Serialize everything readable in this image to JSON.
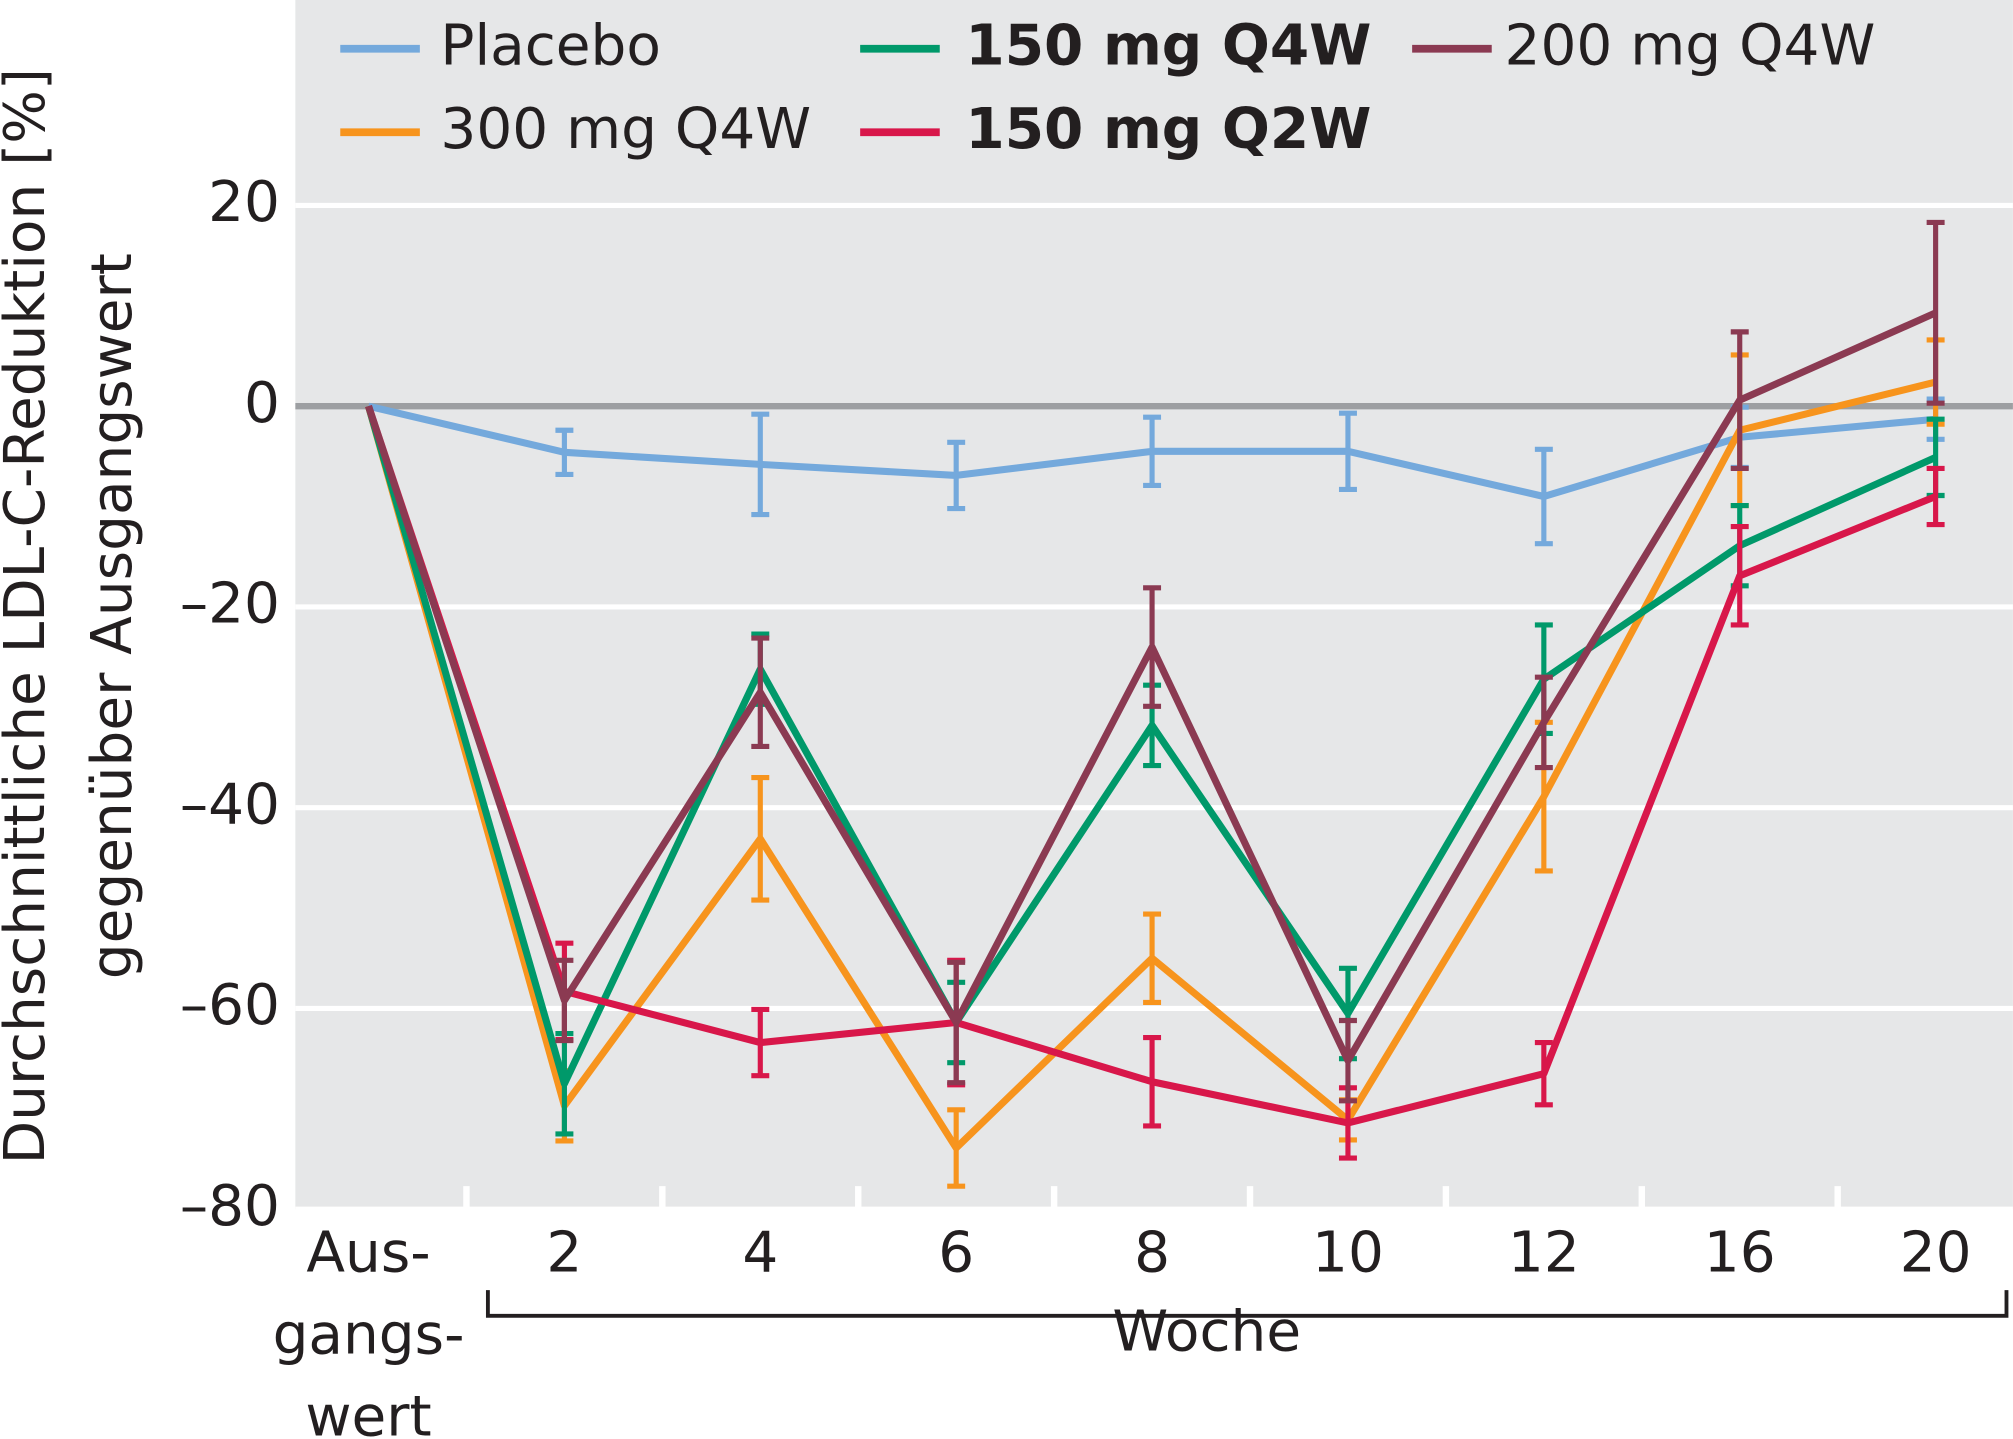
{
  "chart_data": {
    "type": "line",
    "ylabel": [
      "Durchschnittliche LDL-C-Reduktion [%]",
      "gegenüber Ausgangswert"
    ],
    "xlabel": "Woche",
    "categories": [
      "Aus- gangs- wert",
      "2",
      "4",
      "6",
      "8",
      "10",
      "12",
      "16",
      "20"
    ],
    "ylim": [
      -80,
      40
    ],
    "yticks": [
      {
        "value": -80,
        "label": "–80"
      },
      {
        "value": -60,
        "label": "–60"
      },
      {
        "value": -40,
        "label": "–40"
      },
      {
        "value": -20,
        "label": "–20"
      },
      0,
      20
    ],
    "grid": true,
    "series": [
      {
        "name": "Placebo",
        "color": "#74a9dc",
        "bold": false,
        "values": [
          0,
          -4.6,
          -5.8,
          -6.9,
          -4.5,
          -4.5,
          -9,
          -3.1,
          -1.3
        ],
        "errors": [
          null,
          2.2,
          5,
          3.3,
          3.4,
          3.8,
          4.7,
          3,
          2
        ]
      },
      {
        "name": "300 mg Q4W",
        "color": "#f7941d",
        "bold": false,
        "values": [
          0,
          -69.7,
          -43.1,
          -73.9,
          -55,
          -71.1,
          -38.9,
          -2.4,
          2.4
        ],
        "errors": [
          null,
          3.5,
          6.1,
          3.8,
          4.4,
          2,
          7.4,
          7.5,
          4.2
        ]
      },
      {
        "name": "150 mg Q4W",
        "color": "#00996a",
        "bold": true,
        "values": [
          0,
          -67.5,
          -26.2,
          -61.4,
          -31.8,
          -60.5,
          -27.2,
          -13.9,
          -5.1
        ],
        "errors": [
          null,
          5,
          3.5,
          4,
          4,
          4.5,
          5.4,
          4,
          3.8
        ]
      },
      {
        "name": "150 mg Q2W",
        "color": "#d8174a",
        "bold": true,
        "values": [
          0,
          -58.3,
          -63.4,
          -61.4,
          -67.3,
          -71.4,
          -66.5,
          -16.9,
          -9
        ],
        "errors": [
          null,
          4.8,
          3.3,
          6.2,
          4.4,
          3.5,
          3.1,
          4.9,
          2.8
        ]
      },
      {
        "name": "200 mg Q4W",
        "color": "#8b3a52",
        "bold": false,
        "values": [
          0,
          -59.2,
          -28.5,
          -61.4,
          -24,
          -65.2,
          -31.5,
          0.6,
          9.3
        ],
        "errors": [
          null,
          4,
          5.4,
          6,
          5.9,
          4,
          4.5,
          6.8,
          9
        ]
      }
    ]
  }
}
